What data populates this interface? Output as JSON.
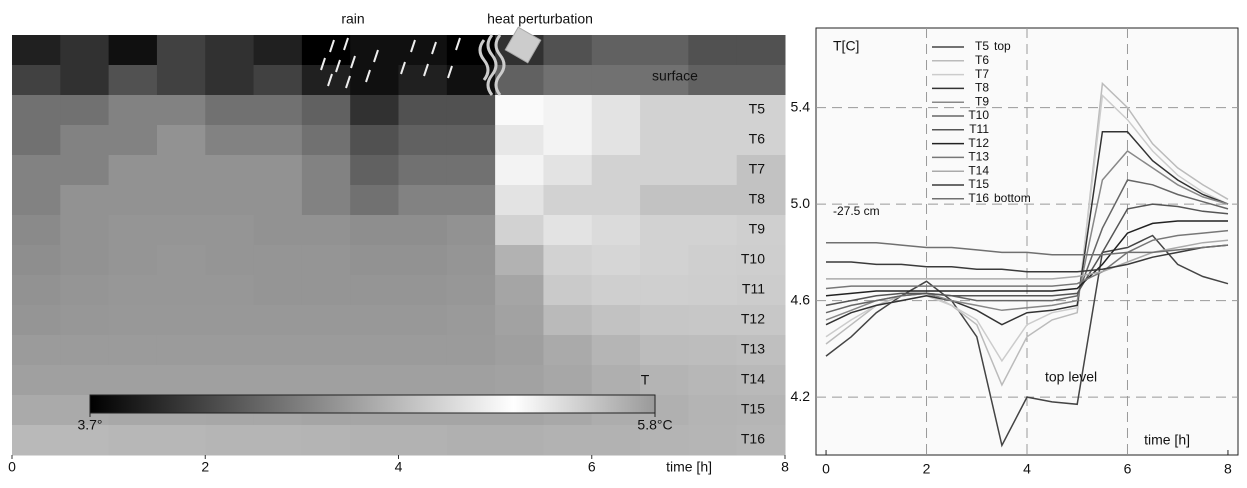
{
  "chart_data": [
    {
      "type": "heatmap",
      "annotations": [
        "rain",
        "heat perturbation",
        "surface"
      ],
      "xlabel": "time [h]",
      "xlim": [
        0,
        8
      ],
      "xticks": [
        0,
        2,
        4,
        6,
        8
      ],
      "bins": [
        0,
        0.5,
        1,
        1.5,
        2,
        2.5,
        3,
        3.5,
        4,
        4.5,
        5,
        5.5,
        6,
        6.5,
        7,
        7.5,
        8
      ],
      "rows": [
        null,
        null,
        "T5",
        "T6",
        "T7",
        "T8",
        "T9",
        "T10",
        "T11",
        "T12",
        "T13",
        "T14",
        "T15",
        "T16"
      ],
      "values": [
        [
          3.9,
          4.0,
          3.8,
          4.1,
          4.0,
          3.9,
          3.7,
          3.8,
          3.8,
          3.7,
          4.0,
          4.2,
          4.3,
          4.3,
          4.2,
          4.2
        ],
        [
          4.1,
          4.0,
          4.2,
          4.1,
          4.0,
          4.1,
          3.9,
          3.8,
          3.9,
          3.8,
          4.3,
          4.4,
          4.4,
          4.4,
          4.3,
          4.3
        ],
        [
          4.4,
          4.4,
          4.5,
          4.5,
          4.4,
          4.4,
          4.3,
          4.0,
          4.2,
          4.2,
          5.3,
          5.2,
          5.1,
          5.0,
          5.0,
          5.0
        ],
        [
          4.4,
          4.5,
          4.5,
          4.6,
          4.5,
          4.5,
          4.4,
          4.2,
          4.3,
          4.3,
          5.4,
          5.2,
          5.1,
          5.0,
          5.0,
          5.0
        ],
        [
          4.5,
          4.5,
          4.6,
          4.6,
          4.6,
          4.6,
          4.5,
          4.3,
          4.4,
          4.4,
          5.2,
          5.1,
          5.0,
          5.0,
          5.0,
          4.9
        ],
        [
          4.5,
          4.6,
          4.6,
          4.6,
          4.6,
          4.6,
          4.5,
          4.4,
          4.5,
          4.5,
          5.1,
          5.0,
          5.0,
          4.9,
          4.9,
          4.9
        ],
        [
          4.55,
          4.6,
          4.62,
          4.62,
          4.62,
          4.6,
          4.6,
          4.58,
          4.58,
          4.6,
          5.0,
          5.1,
          5.05,
          5.0,
          5.0,
          4.98
        ],
        [
          4.58,
          4.6,
          4.62,
          4.63,
          4.62,
          4.62,
          4.62,
          4.6,
          4.6,
          4.62,
          4.8,
          5.0,
          5.02,
          5.0,
          4.98,
          4.97
        ],
        [
          4.6,
          4.62,
          4.63,
          4.63,
          4.63,
          4.62,
          4.62,
          4.62,
          4.62,
          4.63,
          4.72,
          4.95,
          4.98,
          4.98,
          4.97,
          4.96
        ],
        [
          4.62,
          4.63,
          4.64,
          4.64,
          4.64,
          4.64,
          4.64,
          4.64,
          4.64,
          4.65,
          4.7,
          4.85,
          4.9,
          4.92,
          4.93,
          4.93
        ],
        [
          4.66,
          4.66,
          4.66,
          4.66,
          4.66,
          4.66,
          4.66,
          4.66,
          4.66,
          4.66,
          4.68,
          4.75,
          4.82,
          4.86,
          4.87,
          4.88
        ],
        [
          4.69,
          4.69,
          4.69,
          4.69,
          4.69,
          4.69,
          4.69,
          4.69,
          4.69,
          4.69,
          4.7,
          4.73,
          4.78,
          4.81,
          4.83,
          4.84
        ],
        [
          4.75,
          4.75,
          4.74,
          4.74,
          4.73,
          4.73,
          4.72,
          4.72,
          4.72,
          4.72,
          4.72,
          4.74,
          4.77,
          4.79,
          4.81,
          4.82
        ],
        [
          4.84,
          4.84,
          4.83,
          4.83,
          4.82,
          4.82,
          4.81,
          4.8,
          4.8,
          4.79,
          4.79,
          4.8,
          4.8,
          4.81,
          4.82,
          4.83
        ]
      ],
      "colorbar_title": "T",
      "clim": [
        3.7,
        5.8
      ],
      "colorbar_ticks": [
        {
          "value": 3.7,
          "label": "3.7°"
        },
        {
          "value": 5.8,
          "label": "5.8°C"
        }
      ],
      "colormap": [
        "#000000",
        "#555555",
        "#aaaaaa",
        "#ffffff",
        "#999999"
      ]
    },
    {
      "type": "line",
      "ylabel": "T[C]",
      "xlabel": "time [h]",
      "annotations": [
        "-27.5 cm",
        "top level"
      ],
      "xlim": [
        -0.2,
        8.2
      ],
      "xticks": [
        0,
        2,
        4,
        6,
        8
      ],
      "ylim": [
        3.96,
        5.73
      ],
      "yticks": [
        4.2,
        4.6,
        {
          "value": 5,
          "label": "5.0"
        },
        5.4
      ],
      "grid": "dashed",
      "legend": "top",
      "x": [
        0,
        0.5,
        1,
        1.5,
        2,
        2.5,
        3,
        3.5,
        4,
        4.5,
        5,
        5.5,
        6,
        6.5,
        7,
        7.5,
        8
      ],
      "series": [
        {
          "name": "T5",
          "note": "top",
          "color": "#444444",
          "values": [
            4.37,
            4.45,
            4.55,
            4.62,
            4.68,
            4.6,
            4.45,
            4.0,
            4.2,
            4.18,
            4.17,
            4.8,
            4.82,
            4.87,
            4.75,
            4.7,
            4.67
          ]
        },
        {
          "name": "T6",
          "color": "#bbbbbb",
          "values": [
            4.42,
            4.5,
            4.58,
            4.62,
            4.63,
            4.58,
            4.5,
            4.25,
            4.45,
            4.52,
            4.55,
            5.5,
            5.4,
            5.25,
            5.15,
            5.08,
            5.02
          ]
        },
        {
          "name": "T7",
          "color": "#cccccc",
          "values": [
            4.45,
            4.52,
            4.58,
            4.6,
            4.62,
            4.58,
            4.52,
            4.35,
            4.5,
            4.55,
            4.57,
            5.45,
            5.35,
            5.22,
            5.12,
            5.05,
            5.0
          ]
        },
        {
          "name": "T8",
          "color": "#333333",
          "values": [
            4.5,
            4.55,
            4.58,
            4.6,
            4.62,
            4.6,
            4.56,
            4.5,
            4.55,
            4.56,
            4.58,
            5.3,
            5.3,
            5.18,
            5.1,
            5.04,
            5.0
          ]
        },
        {
          "name": "T9",
          "color": "#888888",
          "values": [
            4.52,
            4.56,
            4.6,
            4.62,
            4.63,
            4.6,
            4.58,
            4.56,
            4.57,
            4.58,
            4.6,
            5.1,
            5.22,
            5.15,
            5.08,
            5.03,
            5.0
          ]
        },
        {
          "name": "T10",
          "color": "#666666",
          "values": [
            4.55,
            4.58,
            4.6,
            4.62,
            4.63,
            4.62,
            4.6,
            4.6,
            4.6,
            4.6,
            4.62,
            4.9,
            5.1,
            5.08,
            5.04,
            5.01,
            4.98
          ]
        },
        {
          "name": "T11",
          "color": "#555555",
          "values": [
            4.58,
            4.6,
            4.62,
            4.63,
            4.63,
            4.62,
            4.62,
            4.62,
            4.62,
            4.62,
            4.63,
            4.8,
            4.98,
            5.0,
            4.99,
            4.97,
            4.96
          ]
        },
        {
          "name": "T12",
          "color": "#222222",
          "values": [
            4.62,
            4.63,
            4.64,
            4.64,
            4.64,
            4.64,
            4.64,
            4.64,
            4.64,
            4.64,
            4.65,
            4.75,
            4.88,
            4.92,
            4.93,
            4.93,
            4.93
          ]
        },
        {
          "name": "T13",
          "color": "#777777",
          "values": [
            4.65,
            4.66,
            4.66,
            4.66,
            4.66,
            4.66,
            4.66,
            4.66,
            4.66,
            4.66,
            4.67,
            4.72,
            4.8,
            4.85,
            4.87,
            4.88,
            4.89
          ]
        },
        {
          "name": "T14",
          "color": "#aaaaaa",
          "values": [
            4.69,
            4.69,
            4.69,
            4.69,
            4.69,
            4.69,
            4.69,
            4.69,
            4.69,
            4.69,
            4.7,
            4.72,
            4.76,
            4.8,
            4.82,
            4.84,
            4.85
          ]
        },
        {
          "name": "T15",
          "color": "#3a3a3a",
          "values": [
            4.76,
            4.76,
            4.75,
            4.75,
            4.74,
            4.74,
            4.73,
            4.73,
            4.72,
            4.72,
            4.72,
            4.73,
            4.75,
            4.78,
            4.8,
            4.82,
            4.83
          ]
        },
        {
          "name": "T16",
          "note": "bottom",
          "color": "#707070",
          "values": [
            4.84,
            4.84,
            4.84,
            4.83,
            4.82,
            4.82,
            4.81,
            4.8,
            4.8,
            4.79,
            4.79,
            4.79,
            4.8,
            4.8,
            4.81,
            4.82,
            4.83
          ]
        }
      ]
    }
  ]
}
